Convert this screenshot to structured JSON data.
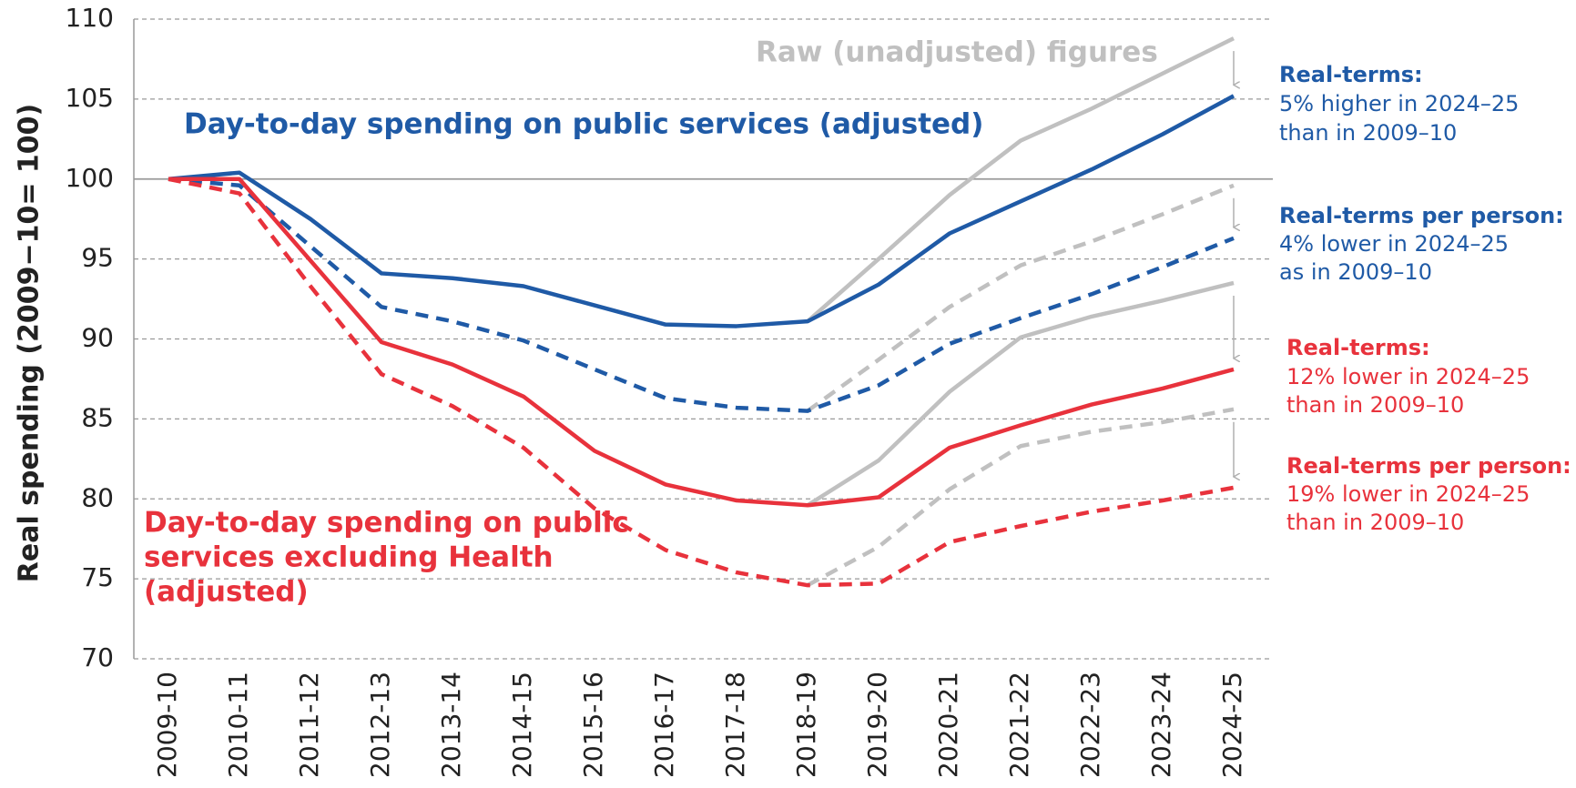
{
  "chart_data": {
    "type": "line",
    "y_label": "Real spending (2009−10= 100)",
    "x": [
      "2009-10",
      "2010-11",
      "2011-12",
      "2012-13",
      "2013-14",
      "2014-15",
      "2015-16",
      "2016-17",
      "2017-18",
      "2018-19",
      "2019-20",
      "2020-21",
      "2021-22",
      "2022-23",
      "2023-24",
      "2024-25"
    ],
    "ylim": [
      70,
      110
    ],
    "yticks": [
      70,
      75,
      80,
      85,
      90,
      95,
      100,
      105,
      110
    ],
    "grid": true,
    "baseline": 100,
    "series": [
      {
        "color": "#c0c0c0",
        "dashed": false,
        "values": [
          null,
          null,
          null,
          null,
          null,
          null,
          null,
          null,
          null,
          91.1,
          95.0,
          99.0,
          102.4,
          104.4,
          106.6,
          108.8
        ]
      },
      {
        "color": "#c0c0c0",
        "dashed": true,
        "values": [
          null,
          null,
          null,
          null,
          null,
          null,
          null,
          null,
          null,
          85.5,
          88.7,
          92.0,
          94.6,
          96.1,
          97.8,
          99.6
        ]
      },
      {
        "color": "#c0c0c0",
        "dashed": false,
        "values": [
          null,
          null,
          null,
          null,
          null,
          null,
          null,
          null,
          null,
          79.6,
          82.4,
          86.7,
          90.1,
          91.4,
          92.4,
          93.5
        ]
      },
      {
        "color": "#c0c0c0",
        "dashed": true,
        "values": [
          null,
          null,
          null,
          null,
          null,
          null,
          null,
          null,
          null,
          74.6,
          77.0,
          80.6,
          83.3,
          84.2,
          84.8,
          85.6
        ]
      },
      {
        "color": "#1f5aa6",
        "dashed": false,
        "values": [
          100,
          100.4,
          97.5,
          94.1,
          93.8,
          93.3,
          92.1,
          90.9,
          90.8,
          91.1,
          93.4,
          96.6,
          98.6,
          100.6,
          102.8,
          105.2
        ]
      },
      {
        "color": "#1f5aa6",
        "dashed": true,
        "values": [
          100,
          99.6,
          95.8,
          92.0,
          91.1,
          89.9,
          88.1,
          86.3,
          85.7,
          85.5,
          87.1,
          89.7,
          91.3,
          92.8,
          94.5,
          96.3
        ]
      },
      {
        "color": "#e8323c",
        "dashed": false,
        "values": [
          100,
          100.0,
          94.9,
          89.8,
          88.4,
          86.4,
          83.0,
          80.9,
          79.9,
          79.6,
          80.1,
          83.2,
          84.6,
          85.9,
          86.9,
          88.1
        ]
      },
      {
        "color": "#e8323c",
        "dashed": true,
        "values": [
          100,
          99.1,
          93.3,
          87.8,
          85.8,
          83.2,
          79.4,
          76.8,
          75.4,
          74.6,
          74.7,
          77.3,
          78.3,
          79.2,
          79.9,
          80.7
        ]
      }
    ],
    "annotations": [
      {
        "color": "#c0c0c0",
        "lines": [
          "Raw (unadjusted) figures"
        ]
      },
      {
        "color": "#1f5aa6",
        "lines": [
          "Day-to-day spending on public services (adjusted)"
        ]
      },
      {
        "color": "#e8323c",
        "lines": [
          "Day-to-day spending on public",
          "services excluding Health",
          "(adjusted)"
        ]
      },
      {
        "color": "#1f5aa6",
        "lines": [
          "Real-terms:",
          "5% higher in 2024–25",
          "than in 2009–10"
        ]
      },
      {
        "color": "#1f5aa6",
        "lines": [
          "Real-terms per person:",
          "4% lower in 2024–25",
          "as in 2009–10"
        ]
      },
      {
        "color": "#e8323c",
        "lines": [
          "Real-terms:",
          "12% lower in 2024–25",
          "than in 2009–10"
        ]
      },
      {
        "color": "#e8323c",
        "lines": [
          "Real-terms per person:",
          "19% lower in 2024–25",
          "than in 2009–10"
        ]
      }
    ]
  }
}
